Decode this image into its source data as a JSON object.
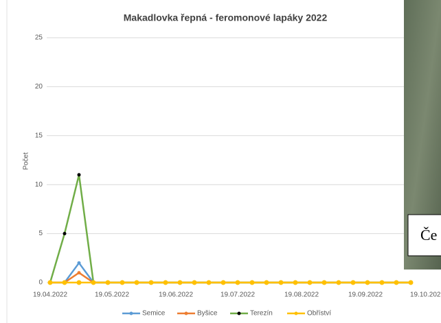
{
  "chart_data": {
    "type": "line",
    "title": "Makadlovka řepná - feromonové lapáky 2022",
    "y_label": "Počet",
    "x": [
      "19.04.2022",
      "26.04.2022",
      "03.05.2022",
      "10.05.2022",
      "17.05.2022",
      "24.05.2022",
      "31.05.2022",
      "07.06.2022",
      "14.06.2022",
      "21.06.2022",
      "28.06.2022",
      "05.07.2022",
      "12.07.2022",
      "19.07.2022",
      "26.07.2022",
      "02.08.2022",
      "09.08.2022",
      "16.08.2022",
      "23.08.2022",
      "30.08.2022",
      "06.09.2022",
      "13.09.2022",
      "20.09.2022",
      "27.09.2022",
      "04.10.2022",
      "11.10.2022"
    ],
    "series": [
      {
        "name": "Semice",
        "color": "#5b9bd5",
        "marker_color": "#5b9bd5",
        "values": [
          0,
          0,
          2,
          0,
          0,
          0,
          0,
          0,
          0,
          0,
          0,
          0,
          0,
          0,
          0,
          0,
          0,
          0,
          0,
          0,
          0,
          0,
          0,
          0,
          0,
          0
        ]
      },
      {
        "name": "Byšice",
        "color": "#ed7d31",
        "marker_color": "#ed7d31",
        "values": [
          0,
          0,
          1,
          0,
          0,
          0,
          0,
          0,
          0,
          0,
          0,
          0,
          0,
          0,
          0,
          0,
          0,
          0,
          0,
          0,
          0,
          0,
          0,
          0,
          0,
          0
        ]
      },
      {
        "name": "Terezín",
        "color": "#70ad47",
        "marker_color": "#000000",
        "values": [
          0,
          5,
          11,
          0,
          0,
          0,
          0,
          0,
          0,
          0,
          0,
          0,
          0,
          0,
          0,
          0,
          0,
          0,
          0,
          0,
          0,
          0,
          0,
          0,
          0,
          0
        ]
      },
      {
        "name": "Obříství",
        "color": "#ffc000",
        "marker_color": "#ffc000",
        "values": [
          0,
          0,
          0,
          0,
          0,
          0,
          0,
          0,
          0,
          0,
          0,
          0,
          0,
          0,
          0,
          0,
          0,
          0,
          0,
          0,
          0,
          0,
          0,
          0,
          0,
          0
        ]
      }
    ],
    "xlim": [
      "19.04.2022",
      "25.10.2022"
    ],
    "xticks": [
      "19.04.2022",
      "19.05.2022",
      "19.06.2022",
      "19.07.2022",
      "19.08.2022",
      "19.09.2022",
      "19.10.2022"
    ],
    "ylim": [
      0,
      25
    ],
    "yticks": [
      0,
      5,
      10,
      15,
      20,
      25
    ],
    "grid": true,
    "legend": "bottom"
  },
  "photo_caption": "Če"
}
